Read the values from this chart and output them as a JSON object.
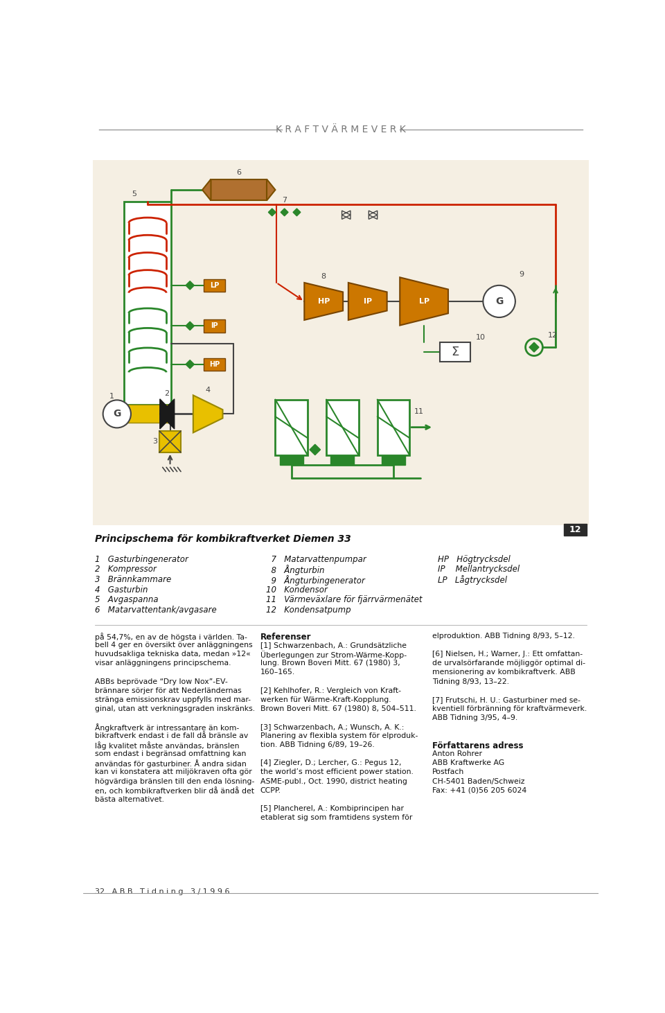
{
  "title_header": "K R A F T V Ä R M E V E R K",
  "bg_color": "#f5efe3",
  "white_bg": "#ffffff",
  "diagram_caption": "Principschema för kombikraftverket Diemen 33",
  "figure_number": "12",
  "legend_items_col1": [
    "1   Gasturbingenerator",
    "2   Kompressor",
    "3   Brännkammare",
    "4   Gasturbin",
    "5   Avgaspanna",
    "6   Matarvattentank/avgasare"
  ],
  "legend_items_col2": [
    "  7   Matarvattenpumpar",
    "  8   Ångturbin",
    "  9   Ångturbingenerator",
    "10   Kondensor",
    "11   Värmeväxlare för fjärrvärmenätet",
    "12   Kondensatpump"
  ],
  "legend_items_col3": [
    "HP   Högtrycksdel",
    "IP    Mellantrycksdel",
    "LP   Lågtrycksdel"
  ],
  "body_col1": [
    "på 54,7%, en av de högsta i världen. Ta-",
    "bell 4 ger en översikt över anläggningens",
    "huvudsakliga tekniska data, medan »12«",
    "visar anläggningens principschema.",
    "",
    "ABBs beprövade “Dry low Nox”-EV-",
    "brännare sörjer för att Nederländernas",
    "stränga emissionskrav uppfylls med mar-",
    "ginal, utan att verkningsgraden inskränks.",
    "",
    "Ångkraftverk är intressantare än kom-",
    "bikraftverk endast i de fall då bränsle av",
    "låg kvalitet måste användas, bränslen",
    "som endast i begränsad omfattning kan",
    "användas för gasturbiner. Å andra sidan",
    "kan vi konstatera att miljökraven ofta gör",
    "högvärdiga bränslen till den enda lösning-",
    "en, och kombikraftverken blir då ändå det",
    "bästa alternativet."
  ],
  "body_col2_title": "Referenser",
  "body_col2": [
    "[1] Schwarzenbach, A.: Grundsätzliche",
    "Überlegungen zur Strom-Wärme-Kopp-",
    "lung. Brown Boveri Mitt. 67 (1980) 3,",
    "160–165.",
    "",
    "[2] Kehlhofer, R.: Vergleich von Kraft-",
    "werken für Wärme-Kraft-Kopplung.",
    "Brown Boveri Mitt. 67 (1980) 8, 504–511.",
    "",
    "[3] Schwarzenbach, A.; Wunsch, A. K.:",
    "Planering av flexibla system för elproduk-",
    "tion. ABB Tidning 6/89, 19–26.",
    "",
    "[4] Ziegler, D.; Lercher, G.: Pegus 12,",
    "the world’s most efficient power station.",
    "ASME-publ., Oct. 1990, district heating",
    "CCPP.",
    "",
    "[5] Plancherel, A.: Kombiprincipen har",
    "etablerat sig som framtidens system för"
  ],
  "body_col3": [
    "elproduktion. ABB Tidning 8/93, 5–12.",
    "",
    "[6] Nielsen, H.; Warner, J.: Ett omfattan-",
    "de urvalsörfarande möjliggör optimal di-",
    "mensionering av kombikraftverk. ABB",
    "Tidning 8/93, 13–22.",
    "",
    "[7] Frutschi, H. U.: Gasturbiner med se-",
    "kventiell förbränning för kraftvärmeverk.",
    "ABB Tidning 3/95, 4–9."
  ],
  "author_title": "Författarens adress",
  "author_lines": [
    "Anton Rohrer",
    "ABB Kraftwerke AG",
    "Postfach",
    "CH-5401 Baden/Schweiz",
    "Fax: +41 (0)56 205 6024"
  ],
  "footer_text": "32   A B B   T i d n i n g   3 / 1 9 9 6",
  "green": "#2a862a",
  "red": "#cc2200",
  "yellow": "#e8c000",
  "orange_brown": "#cc7700",
  "dark_gray": "#444444",
  "light_gray": "#999999"
}
